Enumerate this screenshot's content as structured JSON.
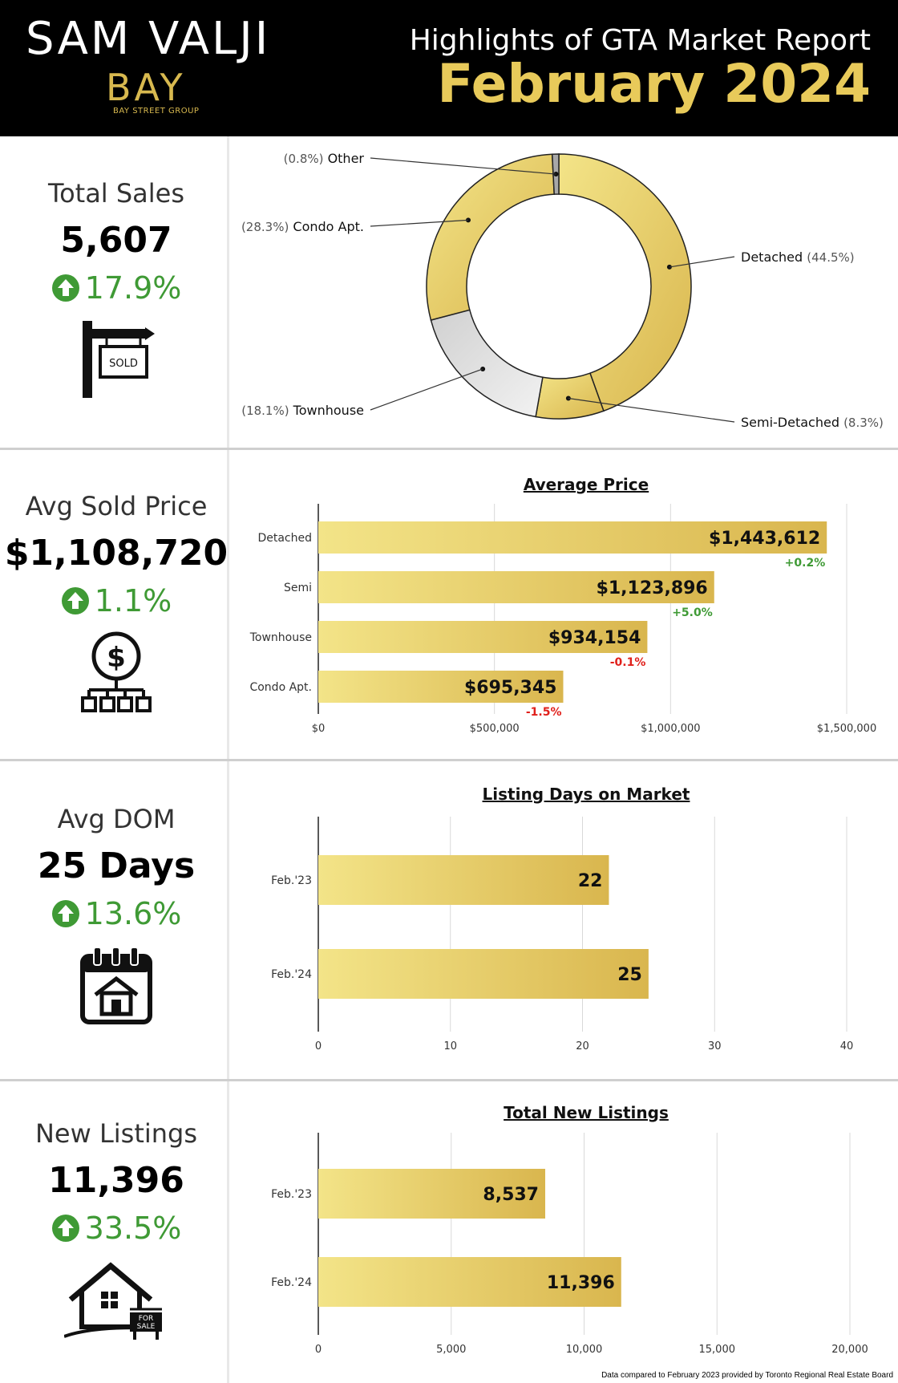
{
  "header": {
    "brand_name": "SAM VALJI",
    "brand_logo": "BAY",
    "brand_sub": "BAY STREET GROUP",
    "report_title": "Highlights of GTA Market Report",
    "report_date": "February 2024"
  },
  "stats": [
    {
      "label": "Total Sales",
      "value": "5,607",
      "change": "17.9%",
      "icon": "sold-sign-icon"
    },
    {
      "label": "Avg Sold Price",
      "value": "$1,108,720",
      "change": "1.1%",
      "icon": "dollar-network-icon"
    },
    {
      "label": "Avg DOM",
      "value": "25 Days",
      "change": "13.6%",
      "icon": "calendar-house-icon"
    },
    {
      "label": "New Listings",
      "value": "11,396",
      "change": "33.5%",
      "icon": "house-for-sale-icon"
    }
  ],
  "icons": {
    "sold_sign": "SOLD",
    "for_sale": [
      "FOR",
      "SALE"
    ]
  },
  "colors": {
    "gold_light": "#f3e488",
    "gold_dark": "#d9b64e",
    "gray": "#c8c8c8",
    "green": "#3f9a35",
    "red": "#e0201b"
  },
  "chart_data": [
    {
      "type": "pie",
      "donut": true,
      "slices": [
        {
          "label": "Detached",
          "pct_label": "(44.5%)",
          "value": 44.5
        },
        {
          "label": "Semi-Detached",
          "pct_label": "(8.3%)",
          "value": 8.3
        },
        {
          "label": "Townhouse",
          "pct_label": "(18.1%)",
          "value": 18.1
        },
        {
          "label": "Condo Apt.",
          "pct_label": "(28.3%)",
          "value": 28.3
        },
        {
          "label": "Other",
          "pct_label": "(0.8%)",
          "value": 0.8
        }
      ]
    },
    {
      "type": "bar",
      "orientation": "horizontal",
      "title": "Average Price",
      "categories": [
        "Detached",
        "Semi",
        "Townhouse",
        "Condo Apt."
      ],
      "values": [
        1443612,
        1123896,
        934154,
        695345
      ],
      "value_labels": [
        "$1,443,612",
        "$1,123,896",
        "$934,154",
        "$695,345"
      ],
      "changes": [
        "+0.2%",
        "+5.0%",
        "-0.1%",
        "-1.5%"
      ],
      "xlim": [
        0,
        1500000
      ],
      "xticks": [
        0,
        500000,
        1000000,
        1500000
      ],
      "xtick_labels": [
        "$0",
        "$500,000",
        "$1,000,000",
        "$1,500,000"
      ],
      "grid": true
    },
    {
      "type": "bar",
      "orientation": "horizontal",
      "title": "Listing Days on Market",
      "categories": [
        "Feb.'23",
        "Feb.'24"
      ],
      "values": [
        22,
        25
      ],
      "value_labels": [
        "22",
        "25"
      ],
      "xlim": [
        0,
        40
      ],
      "xticks": [
        0,
        10,
        20,
        30,
        40
      ],
      "xtick_labels": [
        "0",
        "10",
        "20",
        "30",
        "40"
      ],
      "grid": true
    },
    {
      "type": "bar",
      "orientation": "horizontal",
      "title": "Total New Listings",
      "categories": [
        "Feb.'23",
        "Feb.'24"
      ],
      "values": [
        8537,
        11396
      ],
      "value_labels": [
        "8,537",
        "11,396"
      ],
      "xlim": [
        0,
        20000
      ],
      "xticks": [
        0,
        5000,
        10000,
        15000,
        20000
      ],
      "xtick_labels": [
        "0",
        "5,000",
        "10,000",
        "15,000",
        "20,000"
      ],
      "grid": true
    }
  ],
  "footnote": "Data compared to February 2023 provided by Toronto Regional Real Estate Board"
}
